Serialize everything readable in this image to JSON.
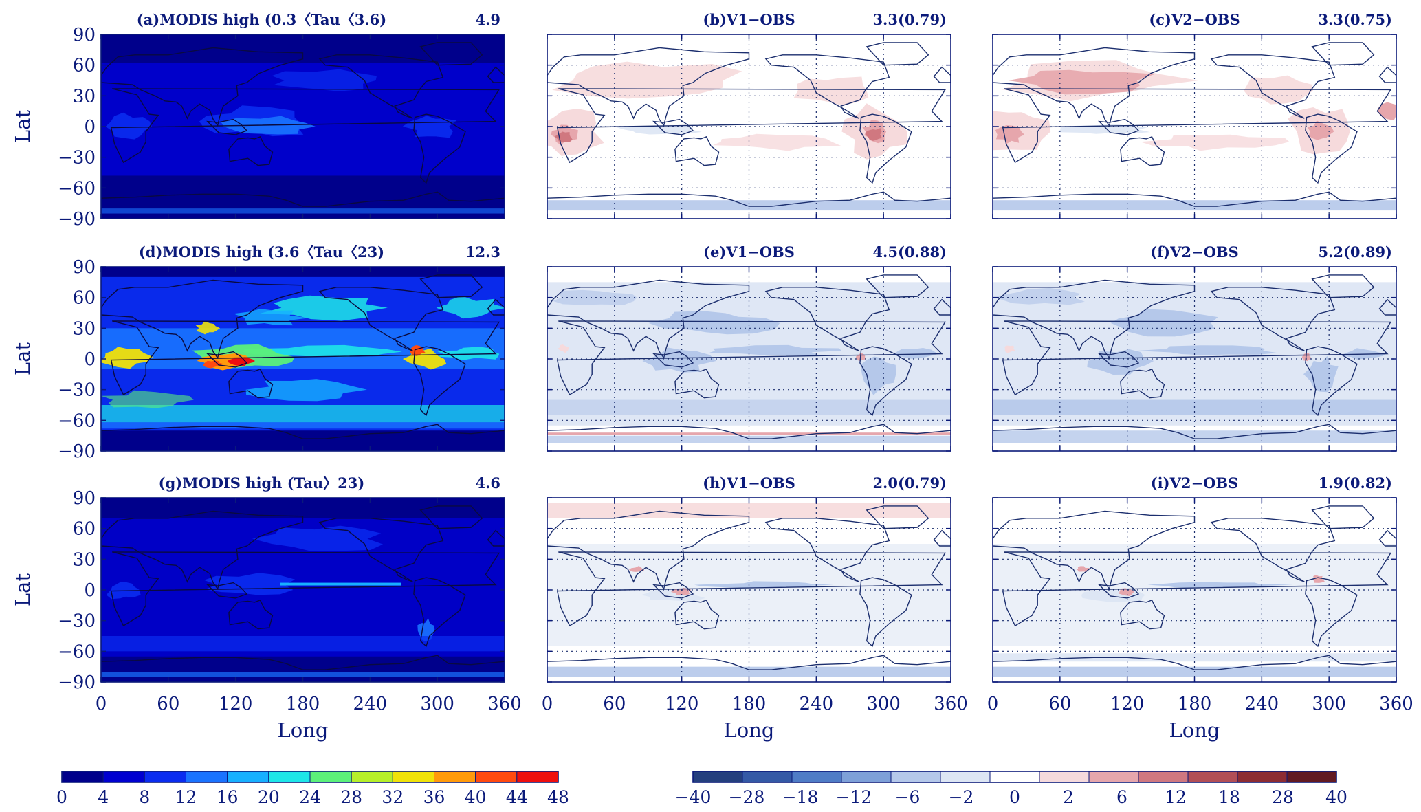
{
  "chart_data": [
    {
      "type": "heatmap",
      "panel": "a",
      "title": "(a)MODIS high (0.3〈Tau〈3.6)",
      "value_label": "4.9",
      "field": "modis",
      "mean": 4.9,
      "xlabel": "",
      "ylabel": "Lat",
      "xlim": [
        0,
        360
      ],
      "ylim": [
        -90,
        90
      ],
      "xticks": [],
      "yticks": [
        "90",
        "60",
        "30",
        "0",
        "−30",
        "−60",
        "−90"
      ],
      "colorbar": "sequential"
    },
    {
      "type": "heatmap",
      "panel": "b",
      "title": "(b)V1−OBS",
      "value_label": "3.3(0.79)",
      "field": "diff",
      "mean": 3.3,
      "corr": 0.79,
      "xlabel": "",
      "ylabel": "",
      "xlim": [
        0,
        360
      ],
      "ylim": [
        -90,
        90
      ],
      "xticks": [],
      "yticks": [],
      "colorbar": "diverging"
    },
    {
      "type": "heatmap",
      "panel": "c",
      "title": "(c)V2−OBS",
      "value_label": "3.3(0.75)",
      "field": "diff",
      "mean": 3.3,
      "corr": 0.75,
      "xlabel": "",
      "ylabel": "",
      "xlim": [
        0,
        360
      ],
      "ylim": [
        -90,
        90
      ],
      "xticks": [],
      "yticks": [],
      "colorbar": "diverging"
    },
    {
      "type": "heatmap",
      "panel": "d",
      "title": "(d)MODIS high (3.6〈Tau〈23)",
      "value_label": "12.3",
      "field": "modis",
      "mean": 12.3,
      "xlabel": "",
      "ylabel": "Lat",
      "xlim": [
        0,
        360
      ],
      "ylim": [
        -90,
        90
      ],
      "xticks": [],
      "yticks": [
        "90",
        "60",
        "30",
        "0",
        "−30",
        "−60",
        "−90"
      ],
      "colorbar": "sequential"
    },
    {
      "type": "heatmap",
      "panel": "e",
      "title": "(e)V1−OBS",
      "value_label": "4.5(0.88)",
      "field": "diff",
      "mean": 4.5,
      "corr": 0.88,
      "xlabel": "",
      "ylabel": "",
      "xlim": [
        0,
        360
      ],
      "ylim": [
        -90,
        90
      ],
      "xticks": [],
      "yticks": [],
      "colorbar": "diverging"
    },
    {
      "type": "heatmap",
      "panel": "f",
      "title": "(f)V2−OBS",
      "value_label": "5.2(0.89)",
      "field": "diff",
      "mean": 5.2,
      "corr": 0.89,
      "xlabel": "",
      "ylabel": "",
      "xlim": [
        0,
        360
      ],
      "ylim": [
        -90,
        90
      ],
      "xticks": [],
      "yticks": [],
      "colorbar": "diverging"
    },
    {
      "type": "heatmap",
      "panel": "g",
      "title": "(g)MODIS high (Tau〉23)",
      "value_label": "4.6",
      "field": "modis",
      "mean": 4.6,
      "xlabel": "Long",
      "ylabel": "Lat",
      "xlim": [
        0,
        360
      ],
      "ylim": [
        -90,
        90
      ],
      "xticks": [
        "0",
        "60",
        "120",
        "180",
        "240",
        "300",
        "360"
      ],
      "yticks": [
        "90",
        "60",
        "30",
        "0",
        "−30",
        "−60",
        "−90"
      ],
      "colorbar": "sequential"
    },
    {
      "type": "heatmap",
      "panel": "h",
      "title": "(h)V1−OBS",
      "value_label": "2.0(0.79)",
      "field": "diff",
      "mean": 2.0,
      "corr": 0.79,
      "xlabel": "Long",
      "ylabel": "",
      "xlim": [
        0,
        360
      ],
      "ylim": [
        -90,
        90
      ],
      "xticks": [
        "0",
        "60",
        "120",
        "180",
        "240",
        "300",
        "360"
      ],
      "yticks": [],
      "colorbar": "diverging"
    },
    {
      "type": "heatmap",
      "panel": "i",
      "title": "(i)V2−OBS",
      "value_label": "1.9(0.82)",
      "field": "diff",
      "mean": 1.9,
      "corr": 0.82,
      "xlabel": "Long",
      "ylabel": "",
      "xlim": [
        0,
        360
      ],
      "ylim": [
        -90,
        90
      ],
      "xticks": [
        "0",
        "60",
        "120",
        "180",
        "240",
        "300",
        "360"
      ],
      "yticks": [],
      "colorbar": "diverging"
    }
  ],
  "colorbars": {
    "sequential": {
      "labels": [
        "0",
        "4",
        "8",
        "12",
        "16",
        "20",
        "24",
        "28",
        "32",
        "36",
        "40",
        "44",
        "48"
      ],
      "colors": [
        "#00008b",
        "#0000d0",
        "#0a2cf0",
        "#1a73ff",
        "#17b0ff",
        "#1ee6e8",
        "#5cf07a",
        "#b6ef2a",
        "#f0e20a",
        "#ff9a0c",
        "#ff4a10",
        "#ee0e0e"
      ]
    },
    "diverging": {
      "labels": [
        "−40",
        "−28",
        "−18",
        "−12",
        "−6",
        "−2",
        "0",
        "2",
        "6",
        "12",
        "18",
        "28",
        "40"
      ],
      "colors": [
        "#243f7e",
        "#3459a6",
        "#4f7cc6",
        "#7ea0d8",
        "#b5c8ea",
        "#dde6f4",
        "#ffffff",
        "#f6dadc",
        "#e6a6ac",
        "#d07880",
        "#b24e56",
        "#8d2c33",
        "#621a22"
      ]
    }
  }
}
